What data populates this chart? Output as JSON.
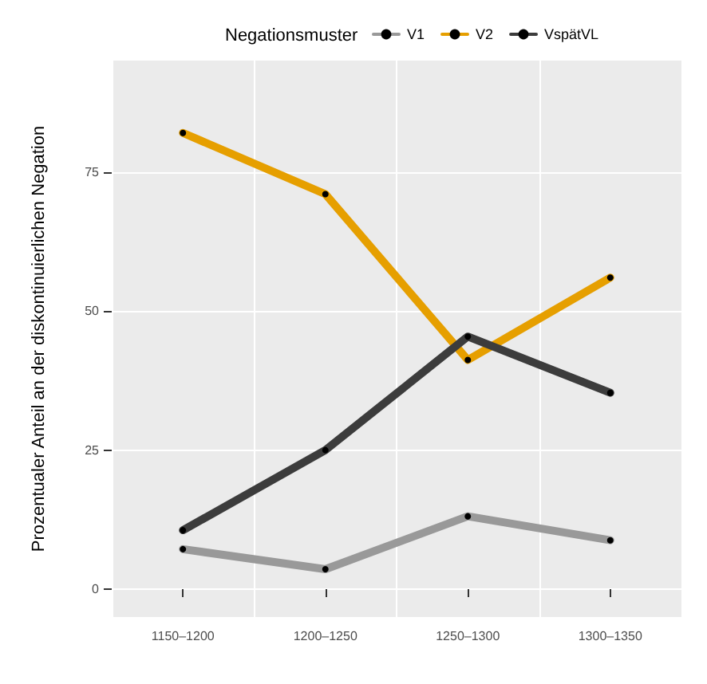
{
  "chart_data": {
    "type": "line",
    "ylabel": "Prozentualer Anteil an der diskontinuierlichen Negation",
    "legend_title": "Negationsmuster",
    "categories": [
      "1150–1200",
      "1200–1250",
      "1250–1300",
      "1300–1350"
    ],
    "series": [
      {
        "name": "V1",
        "color": "#999999",
        "values": [
          7.2,
          3.6,
          13.1,
          8.8
        ]
      },
      {
        "name": "V2",
        "color": "#e69f00",
        "values": [
          82,
          71,
          41.2,
          56
        ]
      },
      {
        "name": "VspätVL",
        "color": "#3c3c3c",
        "values": [
          10.6,
          25,
          45.4,
          35.3
        ]
      }
    ],
    "ylim": [
      -5,
      95
    ],
    "yticks": [
      0,
      25,
      50,
      75
    ],
    "grid": true,
    "legend": "top",
    "marker": "circle",
    "line_style": "solid"
  }
}
